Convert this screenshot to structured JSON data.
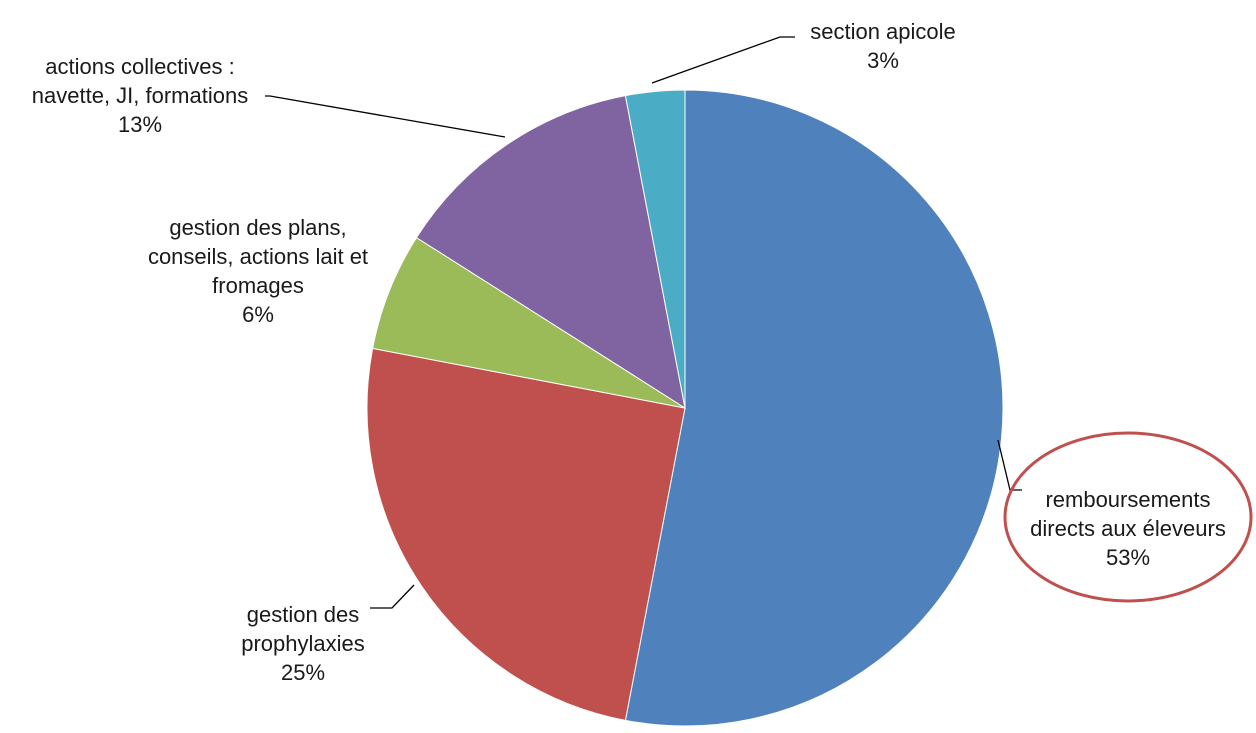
{
  "chart_data": {
    "type": "pie",
    "start_angle_deg": 0,
    "direction": "clockwise",
    "slices": [
      {
        "name": "remboursements directs aux éleveurs",
        "value": 53,
        "value_label": "53%",
        "label_lines": [
          "remboursements",
          "directs aux éleveurs",
          "53%"
        ],
        "color": "#4f81bd",
        "highlighted": true
      },
      {
        "name": "gestion des prophylaxies",
        "value": 25,
        "value_label": "25%",
        "label_lines": [
          "gestion des",
          "prophylaxies",
          "25%"
        ],
        "color": "#c0504d"
      },
      {
        "name": "gestion des plans, conseils, actions lait et fromages",
        "value": 6,
        "value_label": "6%",
        "label_lines": [
          "gestion des plans,",
          "conseils, actions lait et",
          "fromages",
          "6%"
        ],
        "color": "#9bbb59"
      },
      {
        "name": "actions collectives : navette, JI, formations",
        "value": 13,
        "value_label": "13%",
        "label_lines": [
          "actions collectives :",
          "navette, JI, formations",
          "13%"
        ],
        "color": "#8064a2"
      },
      {
        "name": "section apicole",
        "value": 3,
        "value_label": "3%",
        "label_lines": [
          "section apicole",
          "3%"
        ],
        "color": "#4bacc6"
      }
    ],
    "highlight_color": "#c0504d"
  }
}
